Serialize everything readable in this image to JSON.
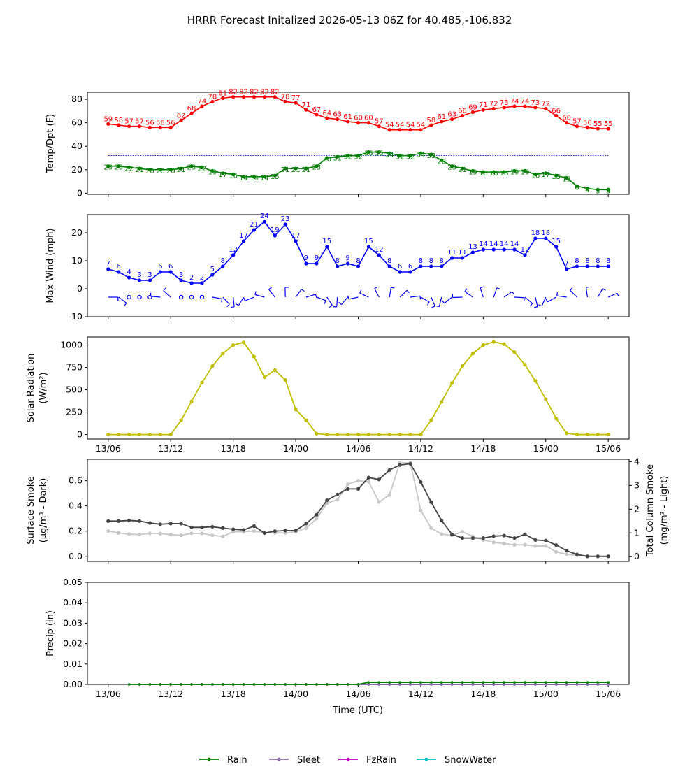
{
  "title": "HRRR Forecast Initalized 2026-05-13 06Z for 40.485,-106.832",
  "xlabel": "Time (UTC)",
  "x_ticks": [
    "13/06",
    "13/12",
    "13/18",
    "14/00",
    "14/06",
    "14/12",
    "14/18",
    "15/00",
    "15/06"
  ],
  "colors": {
    "temp": "#ff0000",
    "dewpoint": "#008000",
    "freezing": "#0000bb",
    "wind": "#0000ff",
    "solar": "#bfbf00",
    "smoke_dark": "#444444",
    "smoke_light": "#c8c8c8",
    "rain": "#008000",
    "sleet": "#8c6fa8",
    "fzrain": "#c000c0",
    "snow": "#00bfbf"
  },
  "chart_data": [
    {
      "type": "line",
      "ylabel": "Temp/Dpt (F)",
      "ylim": [
        -1,
        86
      ],
      "yticks": [
        0,
        20,
        40,
        60,
        80
      ],
      "freezing_line": 32,
      "x_hours": [
        0,
        1,
        2,
        3,
        4,
        5,
        6,
        7,
        8,
        9,
        10,
        11,
        12,
        13,
        14,
        15,
        16,
        17,
        18,
        19,
        20,
        21,
        22,
        23,
        24,
        25,
        26,
        27,
        28,
        29,
        30,
        31,
        32,
        33,
        34,
        35,
        36,
        37,
        38,
        39,
        40,
        41,
        42,
        43,
        44,
        45,
        46,
        47,
        48
      ],
      "series": [
        {
          "key": "temp",
          "values": [
            59,
            58,
            57,
            57,
            56,
            56,
            56,
            62,
            68,
            74,
            78,
            81,
            82,
            82,
            82,
            82,
            82,
            78,
            77,
            71,
            67,
            64,
            63,
            61,
            60,
            60,
            57,
            54,
            54,
            54,
            54,
            58,
            61,
            63,
            66,
            69,
            71,
            72,
            73,
            74,
            74,
            73,
            72,
            66,
            60,
            57,
            56,
            55,
            55
          ]
        },
        {
          "key": "dewpoint",
          "values": [
            23,
            23,
            22,
            21,
            20,
            20,
            20,
            21,
            23,
            22,
            19,
            17,
            16,
            14,
            14,
            14,
            15,
            21,
            21,
            21,
            23,
            30,
            31,
            32,
            32,
            35,
            35,
            34,
            32,
            32,
            34,
            33,
            28,
            23,
            21,
            19,
            18,
            18,
            18,
            19,
            19,
            16,
            17,
            15,
            13,
            6,
            4,
            3,
            3
          ]
        }
      ]
    },
    {
      "type": "line",
      "ylabel": "Max Wind (mph)",
      "ylim": [
        -10,
        26.5
      ],
      "yticks": [
        -10,
        0,
        10,
        20
      ],
      "series": [
        {
          "key": "wind",
          "values": [
            7,
            6,
            4,
            3,
            3,
            6,
            6,
            3,
            2,
            2,
            5,
            8,
            12,
            17,
            21,
            24,
            19,
            23,
            17,
            9,
            9,
            15,
            8,
            9,
            8,
            15,
            12,
            8,
            6,
            6,
            8,
            8,
            8,
            11,
            11,
            13,
            14,
            14,
            14,
            14,
            12,
            18,
            18,
            15,
            7,
            8,
            8,
            8,
            8
          ]
        }
      ]
    },
    {
      "type": "line",
      "ylabel": "Solar Radiation",
      "ylabel_unit": "(W/m²)",
      "ylim": [
        -50,
        1090
      ],
      "yticks": [
        0,
        250,
        500,
        750,
        1000
      ],
      "series": [
        {
          "key": "solar",
          "values": [
            0,
            0,
            0,
            0,
            0,
            0,
            0,
            160,
            370,
            580,
            765,
            905,
            1000,
            1030,
            870,
            640,
            720,
            610,
            280,
            160,
            10,
            0,
            0,
            0,
            0,
            0,
            0,
            0,
            0,
            0,
            0,
            160,
            365,
            575,
            765,
            905,
            1000,
            1035,
            1010,
            920,
            780,
            600,
            395,
            180,
            15,
            0,
            0,
            0,
            0
          ]
        }
      ]
    },
    {
      "type": "line",
      "ylabel": "Surface Smoke",
      "ylabel_unit": "(μg/m³ - Dark)",
      "ylabel_right": "Total Column Smoke",
      "ylabel_right_unit": "(mg/m² - Light)",
      "ylim": [
        -0.04,
        0.77
      ],
      "yticks": [
        0.0,
        0.2,
        0.4,
        0.6
      ],
      "ylim_right": [
        -0.2,
        4.1
      ],
      "yticks_right": [
        0,
        1,
        2,
        3,
        4
      ],
      "series": [
        {
          "key": "smoke_dark",
          "values": [
            0.28,
            0.28,
            0.285,
            0.28,
            0.265,
            0.255,
            0.26,
            0.26,
            0.23,
            0.23,
            0.235,
            0.225,
            0.215,
            0.21,
            0.24,
            0.185,
            0.2,
            0.205,
            0.205,
            0.26,
            0.33,
            0.445,
            0.49,
            0.535,
            0.535,
            0.625,
            0.61,
            0.685,
            0.725,
            0.735,
            0.59,
            0.43,
            0.285,
            0.175,
            0.145,
            0.145,
            0.145,
            0.16,
            0.165,
            0.145,
            0.175,
            0.13,
            0.125,
            0.09,
            0.045,
            0.015,
            0.0,
            0.0,
            0.0
          ]
        },
        {
          "key": "smoke_light",
          "values": [
            1.08,
            1.0,
            0.95,
            0.93,
            0.98,
            0.97,
            0.93,
            0.9,
            0.98,
            0.98,
            0.9,
            0.85,
            1.05,
            1.05,
            1.08,
            1.0,
            1.0,
            1.0,
            1.05,
            1.2,
            1.6,
            2.25,
            2.4,
            3.05,
            3.2,
            3.15,
            2.3,
            2.6,
            3.95,
            3.95,
            1.95,
            1.2,
            0.95,
            0.9,
            1.05,
            0.85,
            0.7,
            0.6,
            0.55,
            0.5,
            0.5,
            0.45,
            0.45,
            0.2,
            0.1,
            0.05,
            0.02,
            0.02,
            0.02
          ]
        }
      ]
    },
    {
      "type": "line",
      "ylabel": "Precip (in)",
      "ylim": [
        0,
        0.05
      ],
      "yticks": [
        "0.00",
        "0.01",
        "0.02",
        "0.03",
        "0.04",
        "0.05"
      ],
      "series": [
        {
          "name": "Rain",
          "key": "rain",
          "values": [
            0,
            0,
            0,
            0,
            0,
            0,
            0,
            0,
            0,
            0,
            0,
            0,
            0,
            0,
            0,
            0,
            0,
            0,
            0,
            0,
            0,
            0,
            0,
            0,
            0,
            0.001,
            0.001,
            0.001,
            0.001,
            0.001,
            0.001,
            0.001,
            0.001,
            0.001,
            0.001,
            0.001,
            0.001,
            0.001,
            0.001,
            0.001,
            0.001,
            0.001,
            0.001,
            0.001,
            0.001,
            0.001,
            0.001,
            0.001,
            0.001
          ]
        },
        {
          "name": "Sleet",
          "key": "sleet",
          "values": [
            0,
            0,
            0,
            0,
            0,
            0,
            0,
            0,
            0,
            0,
            0,
            0,
            0,
            0,
            0,
            0,
            0,
            0,
            0,
            0,
            0,
            0,
            0,
            0,
            0,
            0,
            0,
            0,
            0,
            0,
            0,
            0,
            0,
            0,
            0,
            0,
            0,
            0,
            0,
            0,
            0,
            0,
            0,
            0,
            0,
            0,
            0,
            0,
            0
          ]
        },
        {
          "name": "FzRain",
          "key": "fzrain",
          "values": [
            0,
            0,
            0,
            0,
            0,
            0,
            0,
            0,
            0,
            0,
            0,
            0,
            0,
            0,
            0,
            0,
            0,
            0,
            0,
            0,
            0,
            0,
            0,
            0,
            0,
            0,
            0,
            0,
            0,
            0,
            0,
            0,
            0,
            0,
            0,
            0,
            0,
            0,
            0,
            0,
            0,
            0,
            0,
            0,
            0,
            0,
            0,
            0,
            0
          ]
        },
        {
          "name": "SnowWater",
          "key": "snow",
          "values": [
            0,
            0,
            0,
            0,
            0,
            0,
            0,
            0,
            0,
            0,
            0,
            0,
            0,
            0,
            0,
            0,
            0,
            0,
            0,
            0,
            0,
            0,
            0,
            0,
            0,
            0,
            0,
            0,
            0,
            0,
            0,
            0,
            0,
            0,
            0,
            0,
            0,
            0,
            0,
            0,
            0,
            0,
            0,
            0,
            0,
            0,
            0,
            0,
            0
          ]
        }
      ]
    }
  ],
  "legend": [
    "Rain",
    "Sleet",
    "FzRain",
    "SnowWater"
  ]
}
